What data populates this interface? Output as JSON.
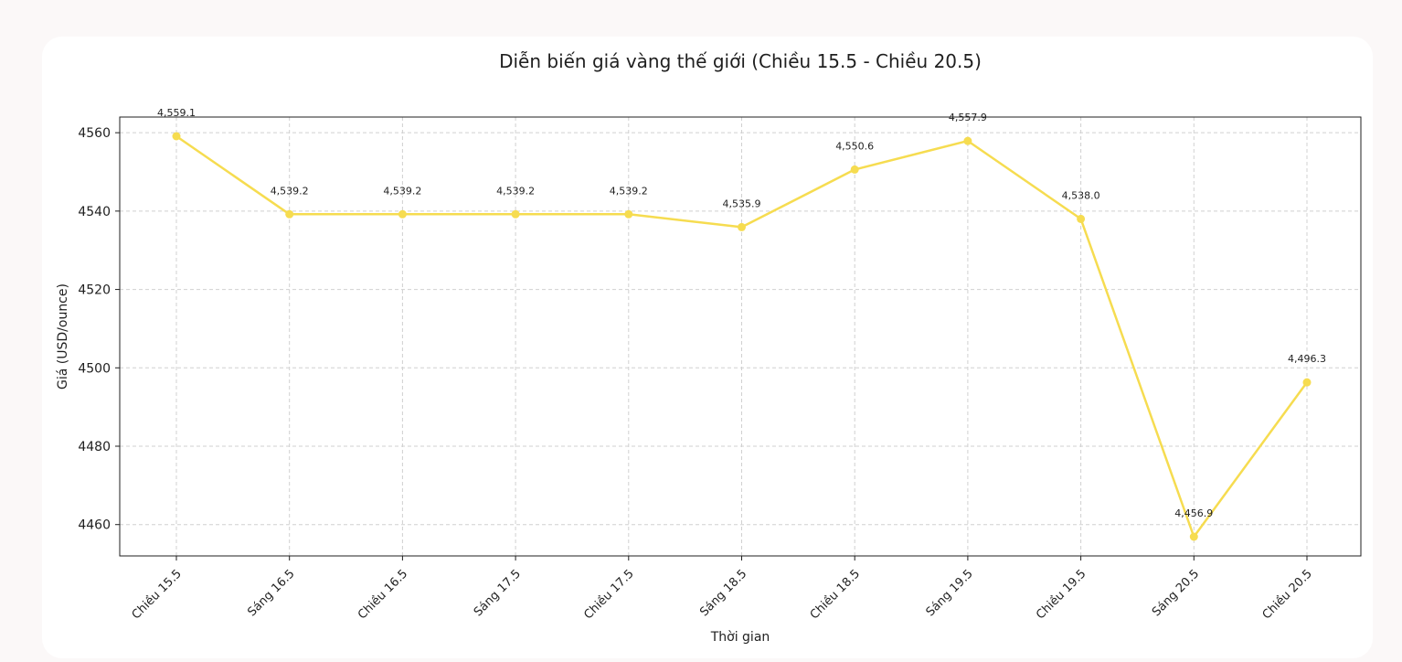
{
  "chart_data": {
    "type": "line",
    "title": "Diễn biến giá vàng thế giới (Chiều 15.5 - Chiều 20.5)",
    "xlabel": "Thời gian",
    "ylabel": "Giá (USD/ounce)",
    "categories": [
      "Chiều 15.5",
      "Sáng 16.5",
      "Chiều 16.5",
      "Sáng 17.5",
      "Chiều 17.5",
      "Sáng 18.5",
      "Chiều 18.5",
      "Sáng 19.5",
      "Chiều 19.5",
      "Sáng 20.5",
      "Chiều 20.5"
    ],
    "series": [
      {
        "values": [
          4559.1,
          4539.2,
          4539.2,
          4539.2,
          4539.2,
          4535.9,
          4550.6,
          4557.9,
          4538.0,
          4456.9,
          4496.3
        ],
        "data_labels": [
          "4,559.1",
          "4,539.2",
          "4,539.2",
          "4,539.2",
          "4,539.2",
          "4,535.9",
          "4,550.6",
          "4,557.9",
          "4,538.0",
          "4,456.9",
          "4,496.3"
        ],
        "color": "#f6dc50"
      }
    ],
    "yticks": [
      4460,
      4480,
      4500,
      4520,
      4540,
      4560
    ],
    "ylim": [
      4452,
      4564
    ],
    "grid": true
  }
}
